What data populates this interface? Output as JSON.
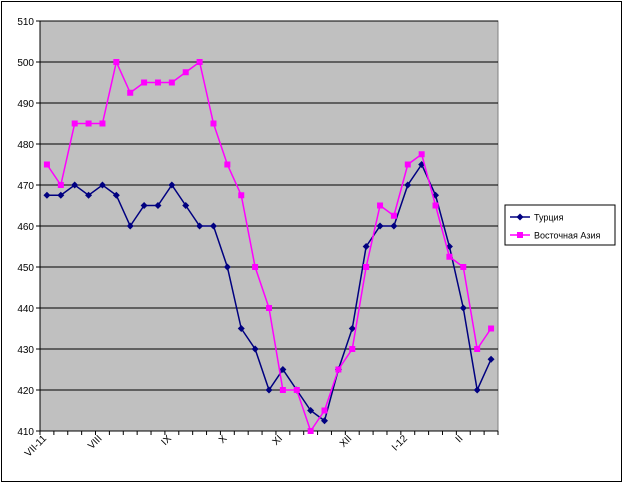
{
  "chart_data": {
    "type": "line",
    "categories": [
      "VII-11",
      null,
      null,
      null,
      "VIII",
      null,
      null,
      null,
      null,
      "IX",
      null,
      null,
      null,
      "X",
      null,
      null,
      null,
      "XI",
      null,
      null,
      null,
      null,
      "XII",
      null,
      null,
      null,
      "I-12",
      null,
      null,
      null,
      "II",
      null,
      null
    ],
    "series": [
      {
        "name": "Турция",
        "color": "#000080",
        "marker": "diamond",
        "values": [
          467.5,
          467.5,
          470,
          467.5,
          470,
          467.5,
          460,
          465,
          465,
          470,
          465,
          460,
          460,
          450,
          435,
          430,
          420,
          425,
          420,
          415,
          412.5,
          425,
          435,
          455,
          460,
          460,
          470,
          475,
          467.5,
          455,
          440,
          420,
          427.5
        ]
      },
      {
        "name": "Восточная Азия",
        "color": "#ff00ff",
        "marker": "square",
        "values": [
          475,
          470,
          485,
          485,
          485,
          500,
          492.5,
          495,
          495,
          495,
          497.5,
          500,
          485,
          475,
          467.5,
          450,
          440,
          420,
          420,
          410,
          415,
          425,
          430,
          450,
          465,
          462.5,
          475,
          477.5,
          465,
          452.5,
          450,
          430,
          435
        ]
      }
    ],
    "ylim": [
      410,
      510
    ],
    "yticks": [
      410,
      420,
      430,
      440,
      450,
      460,
      470,
      480,
      490,
      500,
      510
    ],
    "grid": true,
    "legend": "right",
    "plot_background": "#c0c0c0"
  }
}
